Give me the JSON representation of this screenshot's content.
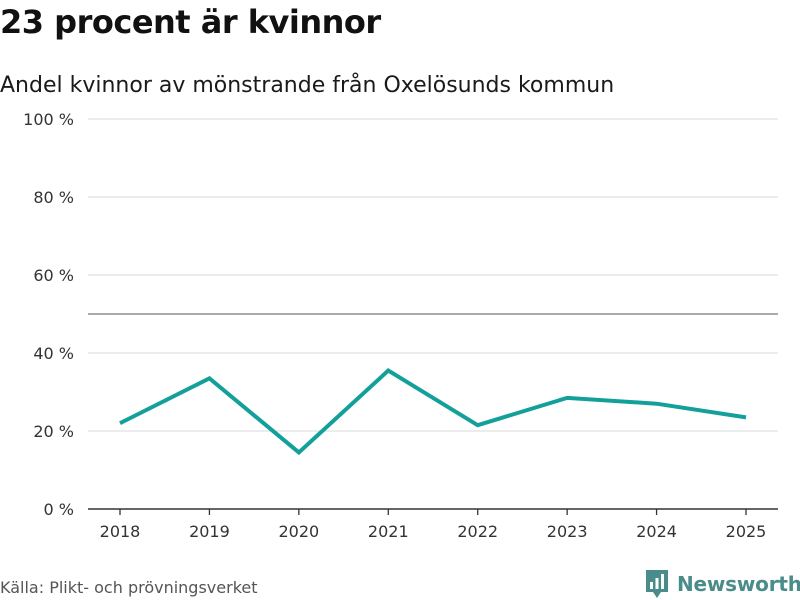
{
  "header": {
    "title": "23 procent är kvinnor",
    "subtitle": "Andel kvinnor av mönstrande från Oxelösunds kommun"
  },
  "footer": {
    "source": "Källa: Plikt- och prövningsverket",
    "brand": "Newsworthy",
    "brand_icon": "newsworthy-logo-icon"
  },
  "colors": {
    "line": "#14a09a",
    "grid": "#d9d9d9",
    "reference": "#777777",
    "axis": "#333333",
    "brand": "#4a8c8a"
  },
  "chart_data": {
    "type": "line",
    "title": "23 procent är kvinnor",
    "subtitle": "Andel kvinnor av mönstrande från Oxelösunds kommun",
    "xlabel": "",
    "ylabel": "",
    "categories": [
      "2018",
      "2019",
      "2020",
      "2021",
      "2022",
      "2023",
      "2024",
      "2025"
    ],
    "series": [
      {
        "name": "Andel kvinnor",
        "values": [
          22,
          33.5,
          14.5,
          35.5,
          21.5,
          28.5,
          27,
          23.5
        ]
      }
    ],
    "ylim": [
      0,
      100
    ],
    "yticks": [
      0,
      20,
      40,
      60,
      80,
      100
    ],
    "ytick_labels": [
      "0 %",
      "20 %",
      "40 %",
      "60 %",
      "80 %",
      "100 %"
    ],
    "reference_line": 50,
    "grid": true,
    "legend": "none"
  }
}
